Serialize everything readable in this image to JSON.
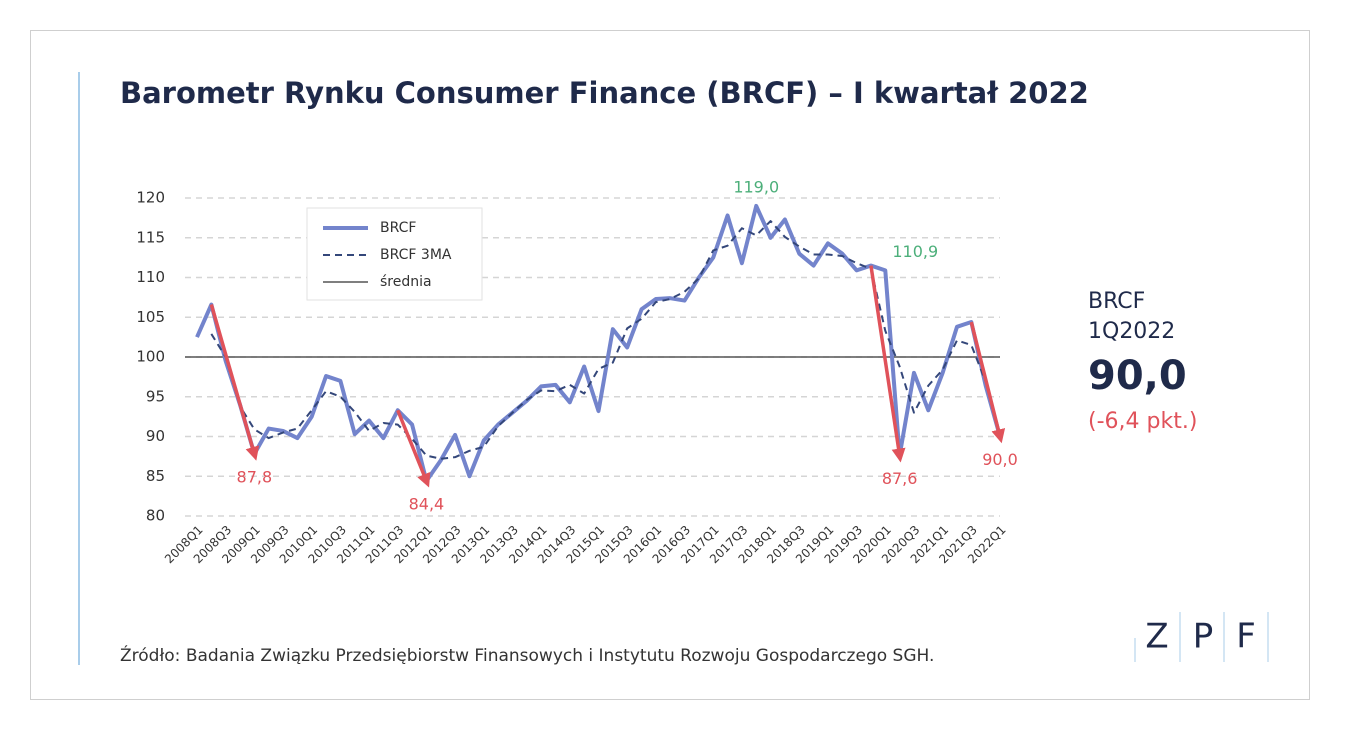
{
  "chart_data": {
    "type": "line",
    "title": "Barometr Rynku Consumer Finance (BRCF) – I kwartał 2022",
    "categories": [
      "2008Q1",
      null,
      "2008Q3",
      null,
      "2009Q1",
      null,
      "2009Q3",
      null,
      "2010Q1",
      null,
      "2010Q3",
      null,
      "2011Q1",
      null,
      "2011Q3",
      null,
      "2012Q1",
      null,
      "2012Q3",
      null,
      "2013Q1",
      null,
      "2013Q3",
      null,
      "2014Q1",
      null,
      "2014Q3",
      null,
      "2015Q1",
      null,
      "2015Q3",
      null,
      "2016Q1",
      null,
      "2016Q3",
      null,
      "2017Q1",
      null,
      "2017Q3",
      null,
      "2018Q1",
      null,
      "2018Q3",
      null,
      "2019Q1",
      null,
      "2019Q3",
      null,
      "2020Q1",
      null,
      "2020Q3",
      null,
      "2021Q1",
      null,
      "2021Q3",
      null,
      "2022Q1"
    ],
    "series": [
      {
        "name": "BRCF",
        "color": "#7384cc",
        "width": 4,
        "dash": false,
        "values": [
          102.5,
          106.6,
          99.5,
          94,
          87.8,
          91,
          90.7,
          89.8,
          92.5,
          97.6,
          97,
          90.3,
          92,
          89.8,
          93.3,
          91.5,
          84.4,
          87,
          90.2,
          85,
          89.5,
          91.5,
          93,
          94.5,
          96.3,
          96.5,
          94.3,
          98.8,
          93.2,
          103.5,
          101.2,
          106,
          107.3,
          107.4,
          107.1,
          110,
          112.5,
          117.8,
          111.8,
          119,
          115,
          117.3,
          113,
          111.5,
          114.3,
          113,
          110.9,
          111.5,
          110.9,
          87.6,
          98,
          93.3,
          98,
          103.8,
          104.4,
          96.4,
          90.0
        ],
        "value_labels": [
          null,
          null,
          null,
          null,
          "87,8",
          null,
          null,
          null,
          null,
          null,
          null,
          null,
          null,
          null,
          null,
          null,
          "84,4",
          null,
          null,
          null,
          null,
          null,
          null,
          null,
          null,
          null,
          null,
          null,
          null,
          null,
          null,
          null,
          null,
          null,
          null,
          null,
          null,
          null,
          null,
          "119,0",
          null,
          null,
          null,
          null,
          null,
          null,
          null,
          null,
          "110,9",
          "87,6",
          null,
          null,
          null,
          null,
          null,
          null,
          "90,0"
        ]
      },
      {
        "name": "BRCF 3MA",
        "color": "#34477a",
        "width": 2,
        "dash": true,
        "values": [
          null,
          102.9,
          100.0,
          93.8,
          90.9,
          89.8,
          90.5,
          91.0,
          93.3,
          95.7,
          95.0,
          93.1,
          90.7,
          91.7,
          91.5,
          89.7,
          87.6,
          87.2,
          87.4,
          88.2,
          88.7,
          91.3,
          93.0,
          94.6,
          95.8,
          95.7,
          96.5,
          95.4,
          98.5,
          99.3,
          103.6,
          104.8,
          106.9,
          107.3,
          108.2,
          109.9,
          113.4,
          114.0,
          116.2,
          115.3,
          117.1,
          115.1,
          113.9,
          112.9,
          112.9,
          112.7,
          111.8,
          111.1,
          103.3,
          98.8,
          93.0,
          96.4,
          98.4,
          102.1,
          101.5,
          96.9,
          null
        ]
      }
    ],
    "reference": {
      "name": "średnia",
      "value": 100,
      "color": "#555555"
    },
    "ylim": [
      80,
      120
    ],
    "yticks": [
      80,
      85,
      90,
      95,
      100,
      105,
      110,
      115,
      120
    ],
    "grid": true,
    "high_color": "#4caf7a",
    "low_color": "#e0525a"
  },
  "summary": {
    "name": "BRCF",
    "period": "1Q2022",
    "value": "90,0",
    "change": "(-6,4 pkt.)"
  },
  "source": "Źródło: Badania Związku Przedsiębiorstw Finansowych i Instytutu Rozwoju Gospodarczego SGH.",
  "logo": [
    "Z",
    "P",
    "F"
  ]
}
